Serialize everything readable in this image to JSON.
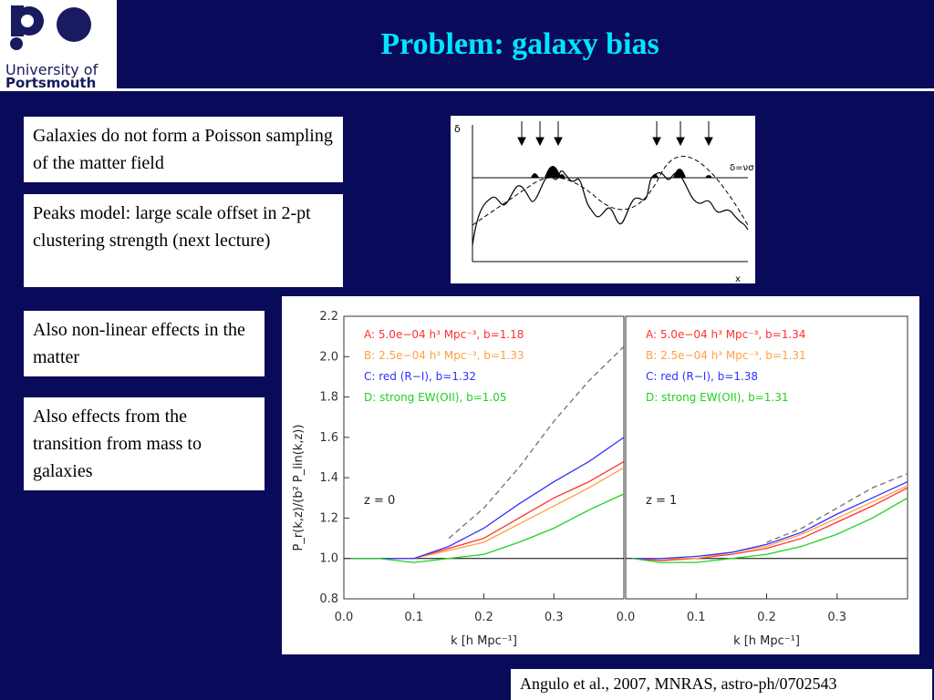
{
  "header": {
    "logo": {
      "line1": "University of",
      "line2": "Portsmouth"
    },
    "title": "Problem: galaxy bias"
  },
  "boxes": [
    {
      "text": "Galaxies do not form a Poisson sampling of the matter field"
    },
    {
      "text": "Peaks model: large scale offset in 2-pt clustering strength (next lecture)"
    },
    {
      "text": "Also non-linear effects in the matter"
    },
    {
      "text": "Also effects from the transition from mass to galaxies"
    }
  ],
  "peaks_diagram": {
    "ylabel": "δ",
    "threshold_label": "δ=νσ",
    "xlabel": "x"
  },
  "citation": "Angulo et al., 2007, MNRAS, astro-ph/0702543",
  "colors": {
    "background": "#0a0a5a",
    "title": "#00e5ff",
    "A": "#ff3030",
    "B": "#ffa040",
    "C": "#3030ff",
    "D": "#20d020",
    "dashed": "#707070"
  },
  "chart_data": [
    {
      "type": "line",
      "xlabel": "k [h Mpc⁻¹]",
      "ylabel": "P_r(k,z)/(b² P_lin(k,z))",
      "xlim": [
        0.0,
        0.4
      ],
      "ylim": [
        0.8,
        2.2
      ],
      "xticks": [
        "0.0",
        "0.1",
        "0.2",
        "0.3"
      ],
      "yticks": [
        "0.8",
        "1.0",
        "1.2",
        "1.4",
        "1.6",
        "1.8",
        "2.0",
        "2.2"
      ],
      "annotation": "z = 0",
      "legend": [
        {
          "label": "A: 5.0e−04 h³ Mpc⁻³, b=1.18",
          "color": "#ff3030"
        },
        {
          "label": "B: 2.5e−04 h³ Mpc⁻³, b=1.33",
          "color": "#ffa040"
        },
        {
          "label": "C: red (R−I), b=1.32",
          "color": "#3030ff"
        },
        {
          "label": "D: strong EW(OII), b=1.05",
          "color": "#20d020"
        }
      ],
      "series": [
        {
          "name": "A",
          "x": [
            0.01,
            0.05,
            0.1,
            0.15,
            0.2,
            0.25,
            0.3,
            0.35,
            0.4
          ],
          "y": [
            1.0,
            1.0,
            1.0,
            1.05,
            1.1,
            1.2,
            1.3,
            1.38,
            1.48
          ]
        },
        {
          "name": "B",
          "x": [
            0.01,
            0.05,
            0.1,
            0.15,
            0.2,
            0.25,
            0.3,
            0.35,
            0.4
          ],
          "y": [
            1.0,
            1.0,
            1.0,
            1.04,
            1.08,
            1.17,
            1.26,
            1.35,
            1.45
          ]
        },
        {
          "name": "C",
          "x": [
            0.01,
            0.05,
            0.1,
            0.15,
            0.2,
            0.25,
            0.3,
            0.35,
            0.4
          ],
          "y": [
            1.0,
            1.0,
            1.0,
            1.06,
            1.15,
            1.27,
            1.38,
            1.48,
            1.6
          ]
        },
        {
          "name": "D",
          "x": [
            0.01,
            0.05,
            0.1,
            0.15,
            0.2,
            0.25,
            0.3,
            0.35,
            0.4
          ],
          "y": [
            1.0,
            1.0,
            0.98,
            1.0,
            1.02,
            1.08,
            1.15,
            1.24,
            1.32
          ]
        },
        {
          "x": [
            0.15,
            0.2,
            0.25,
            0.3,
            0.35,
            0.4
          ],
          "y": [
            1.1,
            1.25,
            1.45,
            1.68,
            1.88,
            2.05
          ]
        }
      ]
    },
    {
      "type": "line",
      "xlabel": "k [h Mpc⁻¹]",
      "xlim": [
        0.0,
        0.4
      ],
      "ylim": [
        0.8,
        2.2
      ],
      "xticks": [
        "0.0",
        "0.1",
        "0.2",
        "0.3"
      ],
      "annotation": "z = 1",
      "legend": [
        {
          "label": "A: 5.0e−04 h³ Mpc⁻³, b=1.34",
          "color": "#ff3030"
        },
        {
          "label": "B: 2.5e−04 h³ Mpc⁻³, b=1.31",
          "color": "#ffa040"
        },
        {
          "label": "C: red (R−I), b=1.38",
          "color": "#3030ff"
        },
        {
          "label": "D: strong EW(OII), b=1.31",
          "color": "#20d020"
        }
      ],
      "series": [
        {
          "name": "A",
          "x": [
            0.01,
            0.05,
            0.1,
            0.15,
            0.2,
            0.25,
            0.3,
            0.35,
            0.4
          ],
          "y": [
            1.0,
            0.99,
            1.0,
            1.02,
            1.05,
            1.1,
            1.18,
            1.26,
            1.35
          ]
        },
        {
          "name": "B",
          "x": [
            0.01,
            0.05,
            0.1,
            0.15,
            0.2,
            0.25,
            0.3,
            0.35,
            0.4
          ],
          "y": [
            1.0,
            1.0,
            1.0,
            1.03,
            1.06,
            1.12,
            1.2,
            1.28,
            1.36
          ]
        },
        {
          "name": "C",
          "x": [
            0.01,
            0.05,
            0.1,
            0.15,
            0.2,
            0.25,
            0.3,
            0.35,
            0.4
          ],
          "y": [
            1.0,
            1.0,
            1.01,
            1.03,
            1.07,
            1.13,
            1.22,
            1.3,
            1.38
          ]
        },
        {
          "name": "D",
          "x": [
            0.01,
            0.05,
            0.1,
            0.15,
            0.2,
            0.25,
            0.3,
            0.35,
            0.4
          ],
          "y": [
            1.0,
            0.98,
            0.98,
            1.0,
            1.02,
            1.06,
            1.12,
            1.2,
            1.3
          ]
        },
        {
          "x": [
            0.2,
            0.25,
            0.3,
            0.35,
            0.4
          ],
          "y": [
            1.08,
            1.15,
            1.25,
            1.35,
            1.42
          ]
        }
      ]
    }
  ]
}
